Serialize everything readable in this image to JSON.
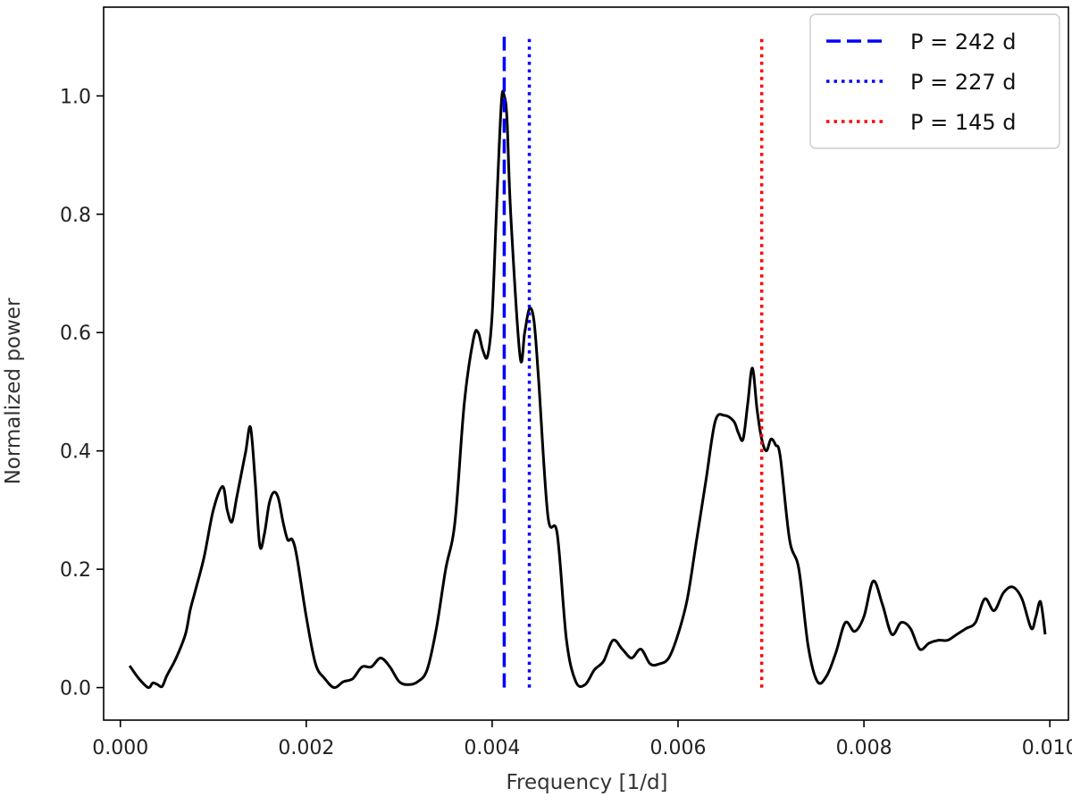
{
  "chart_data": {
    "type": "line",
    "title": "",
    "xlabel": "Frequency [1/d]",
    "ylabel": "Normalized power",
    "xlim": [
      -0.00018,
      0.0102
    ],
    "ylim": [
      -0.055,
      1.15
    ],
    "grid": false,
    "legend_position": "top-right",
    "xticks": [
      0.0,
      0.002,
      0.004,
      0.006,
      0.008,
      0.01
    ],
    "xtick_labels": [
      "0.000",
      "0.002",
      "0.004",
      "0.006",
      "0.008",
      "0.010"
    ],
    "yticks": [
      0.0,
      0.2,
      0.4,
      0.6,
      0.8,
      1.0
    ],
    "ytick_labels": [
      "0.0",
      "0.2",
      "0.4",
      "0.6",
      "0.8",
      "1.0"
    ],
    "series": [
      {
        "color": "#000000",
        "x": [
          0.0001,
          0.0002,
          0.0003,
          0.00035,
          0.0004,
          0.00045,
          0.0005,
          0.0006,
          0.0007,
          0.00075,
          0.0008,
          0.0009,
          0.001,
          0.0011,
          0.00115,
          0.0012,
          0.00125,
          0.0013,
          0.00135,
          0.0014,
          0.00145,
          0.0015,
          0.00155,
          0.0016,
          0.00165,
          0.0017,
          0.00175,
          0.0018,
          0.00185,
          0.0019,
          0.002,
          0.0021,
          0.0022,
          0.0023,
          0.0024,
          0.0025,
          0.0026,
          0.0027,
          0.0028,
          0.0029,
          0.003,
          0.0031,
          0.0032,
          0.0033,
          0.0034,
          0.0035,
          0.0036,
          0.0037,
          0.0038,
          0.00385,
          0.0039,
          0.00395,
          0.004,
          0.00405,
          0.0041,
          0.00413,
          0.00416,
          0.0042,
          0.0043,
          0.00435,
          0.0044,
          0.00445,
          0.0045,
          0.0046,
          0.0047,
          0.0048,
          0.0049,
          0.005,
          0.0051,
          0.0052,
          0.0053,
          0.0054,
          0.0055,
          0.0056,
          0.0057,
          0.0058,
          0.0059,
          0.006,
          0.0061,
          0.0062,
          0.0063,
          0.0064,
          0.0065,
          0.0066,
          0.00665,
          0.0067,
          0.00675,
          0.0068,
          0.00685,
          0.0069,
          0.00695,
          0.007,
          0.00705,
          0.0071,
          0.0072,
          0.0073,
          0.0074,
          0.0075,
          0.0076,
          0.0077,
          0.0078,
          0.0079,
          0.008,
          0.0081,
          0.0082,
          0.0083,
          0.0084,
          0.0085,
          0.0086,
          0.0087,
          0.0088,
          0.0089,
          0.009,
          0.0091,
          0.0092,
          0.0093,
          0.0094,
          0.0095,
          0.0096,
          0.0097,
          0.0098,
          0.00985,
          0.0099,
          0.00995
        ],
        "y": [
          0.037,
          0.015,
          0.0,
          0.008,
          0.005,
          0.002,
          0.02,
          0.05,
          0.09,
          0.13,
          0.16,
          0.22,
          0.3,
          0.34,
          0.3,
          0.28,
          0.32,
          0.36,
          0.4,
          0.44,
          0.35,
          0.24,
          0.26,
          0.31,
          0.33,
          0.32,
          0.28,
          0.25,
          0.25,
          0.22,
          0.12,
          0.04,
          0.015,
          0.0,
          0.01,
          0.015,
          0.035,
          0.035,
          0.05,
          0.035,
          0.01,
          0.005,
          0.01,
          0.03,
          0.1,
          0.2,
          0.28,
          0.48,
          0.59,
          0.6,
          0.57,
          0.56,
          0.63,
          0.82,
          0.99,
          1.0,
          0.96,
          0.8,
          0.56,
          0.6,
          0.64,
          0.62,
          0.52,
          0.29,
          0.26,
          0.08,
          0.01,
          0.005,
          0.03,
          0.045,
          0.08,
          0.065,
          0.05,
          0.065,
          0.04,
          0.04,
          0.05,
          0.09,
          0.15,
          0.25,
          0.35,
          0.45,
          0.46,
          0.45,
          0.43,
          0.42,
          0.48,
          0.54,
          0.47,
          0.42,
          0.4,
          0.42,
          0.41,
          0.39,
          0.25,
          0.2,
          0.07,
          0.01,
          0.02,
          0.06,
          0.11,
          0.095,
          0.12,
          0.18,
          0.14,
          0.09,
          0.11,
          0.1,
          0.065,
          0.075,
          0.08,
          0.08,
          0.09,
          0.1,
          0.11,
          0.15,
          0.13,
          0.16,
          0.17,
          0.15,
          0.1,
          0.12,
          0.145,
          0.09
        ]
      }
    ],
    "vlines": [
      {
        "label": "P = 242 d",
        "x": 0.00413,
        "color": "#0000ff",
        "style": "dashed",
        "ymin": 0.0,
        "ymax": 1.1
      },
      {
        "label": "P = 227 d",
        "x": 0.0044,
        "color": "#0000ff",
        "style": "dotted",
        "ymin": 0.0,
        "ymax": 1.1
      },
      {
        "label": "P = 145 d",
        "x": 0.0069,
        "color": "#ff0000",
        "style": "dotted",
        "ymin": 0.0,
        "ymax": 1.1
      }
    ]
  }
}
